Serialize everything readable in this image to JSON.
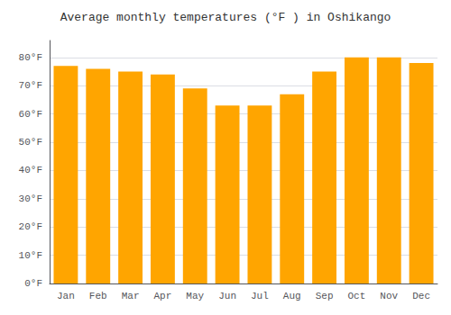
{
  "chart_data": {
    "type": "bar",
    "title": "Average monthly temperatures (°F ) in Oshikango",
    "categories": [
      "Jan",
      "Feb",
      "Mar",
      "Apr",
      "May",
      "Jun",
      "Jul",
      "Aug",
      "Sep",
      "Oct",
      "Nov",
      "Dec"
    ],
    "values": [
      77,
      76,
      75,
      74,
      69,
      63,
      63,
      67,
      75,
      80,
      80,
      78
    ],
    "color": "#FFA500",
    "ylim": [
      0,
      86
    ],
    "yticks": [
      {
        "value": 0,
        "label": "0°F"
      },
      {
        "value": 10,
        "label": "10°F"
      },
      {
        "value": 20,
        "label": "20°F"
      },
      {
        "value": 30,
        "label": "30°F"
      },
      {
        "value": 40,
        "label": "40°F"
      },
      {
        "value": 50,
        "label": "50°F"
      },
      {
        "value": 60,
        "label": "60°F"
      },
      {
        "value": 70,
        "label": "70°F"
      },
      {
        "value": 80,
        "label": "80°F"
      }
    ],
    "grid": true
  }
}
